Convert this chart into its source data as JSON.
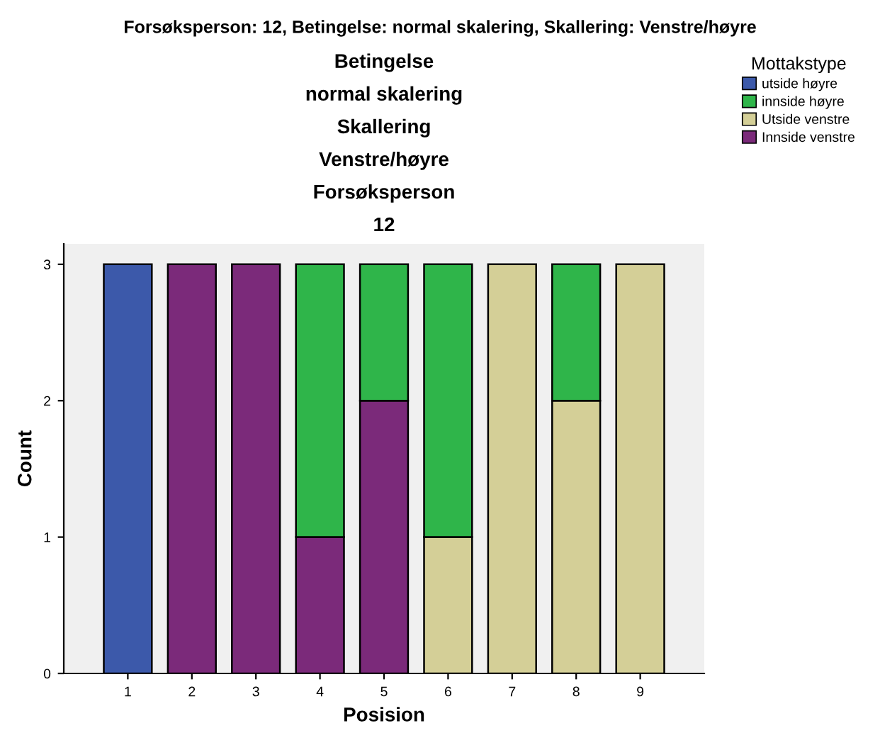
{
  "chart_data": {
    "type": "bar",
    "title": "Forsøksperson: 12, Betingelse: normal skalering, Skallering: Venstre/høyre",
    "subtitle": "Betingelse\nnormal skalering\nSkallering\nVenstre/høyre\nForsøksperson\n12",
    "xlabel": "Posision",
    "ylabel": "Count",
    "legend_title": "Mottakstype",
    "categories": [
      "1",
      "2",
      "3",
      "4",
      "5",
      "6",
      "7",
      "8",
      "9"
    ],
    "stacked": true,
    "series": [
      {
        "name": "Innside venstre",
        "color": "#7b2a7a",
        "values": [
          0,
          3,
          3,
          1,
          2,
          0,
          0,
          0,
          0
        ]
      },
      {
        "name": "Utside venstre",
        "color": "#d4cf97",
        "values": [
          0,
          0,
          0,
          0,
          0,
          1,
          3,
          2,
          3
        ]
      },
      {
        "name": "innside høyre",
        "color": "#2fb54a",
        "values": [
          0,
          0,
          0,
          2,
          1,
          2,
          0,
          1,
          0
        ]
      },
      {
        "name": "utside høyre",
        "color": "#3c59aa",
        "values": [
          3,
          0,
          0,
          0,
          0,
          0,
          0,
          0,
          0
        ]
      }
    ],
    "ylim": [
      0,
      3.15
    ],
    "yticks": [
      0,
      1,
      2,
      3
    ],
    "grid": false,
    "legend": "top right"
  }
}
